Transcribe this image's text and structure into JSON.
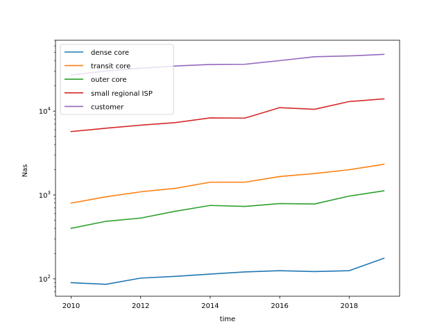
{
  "chart_data": {
    "type": "line",
    "title": "",
    "xlabel": "time",
    "ylabel": "Nas",
    "yscale": "log",
    "xlim": [
      2009.55,
      2019.45
    ],
    "ylim": [
      62,
      70000
    ],
    "grid": false,
    "legend_position": "top-left",
    "x_ticks": [
      2010,
      2012,
      2014,
      2016,
      2018
    ],
    "x_tick_labels": [
      "2010",
      "2012",
      "2014",
      "2016",
      "2018"
    ],
    "y_ticks": [
      {
        "value": 100,
        "base": "10",
        "exp": "2"
      },
      {
        "value": 1000,
        "base": "10",
        "exp": "3"
      },
      {
        "value": 10000,
        "base": "10",
        "exp": "4"
      }
    ],
    "x": [
      2010,
      2011,
      2012,
      2013,
      2014,
      2015,
      2016,
      2017,
      2018,
      2019
    ],
    "series": [
      {
        "name": "dense core",
        "color": "#1f77b4",
        "values": [
          90,
          86,
          102,
          107,
          114,
          121,
          125,
          122,
          125,
          176
        ]
      },
      {
        "name": "transit core",
        "color": "#ff7f0e",
        "values": [
          800,
          950,
          1090,
          1200,
          1420,
          1420,
          1660,
          1800,
          2000,
          2320
        ]
      },
      {
        "name": "outer core",
        "color": "#2ca02c",
        "values": [
          400,
          485,
          530,
          640,
          750,
          730,
          790,
          780,
          970,
          1120
        ]
      },
      {
        "name": "small regional ISP",
        "color": "#d62728",
        "values": [
          5700,
          6250,
          6800,
          7300,
          8300,
          8250,
          11000,
          10500,
          13000,
          14000
        ]
      },
      {
        "name": "customer",
        "color": "#9467bd",
        "values": [
          27000,
          30000,
          32500,
          34500,
          36000,
          36200,
          40000,
          44500,
          45500,
          47500
        ]
      }
    ]
  }
}
